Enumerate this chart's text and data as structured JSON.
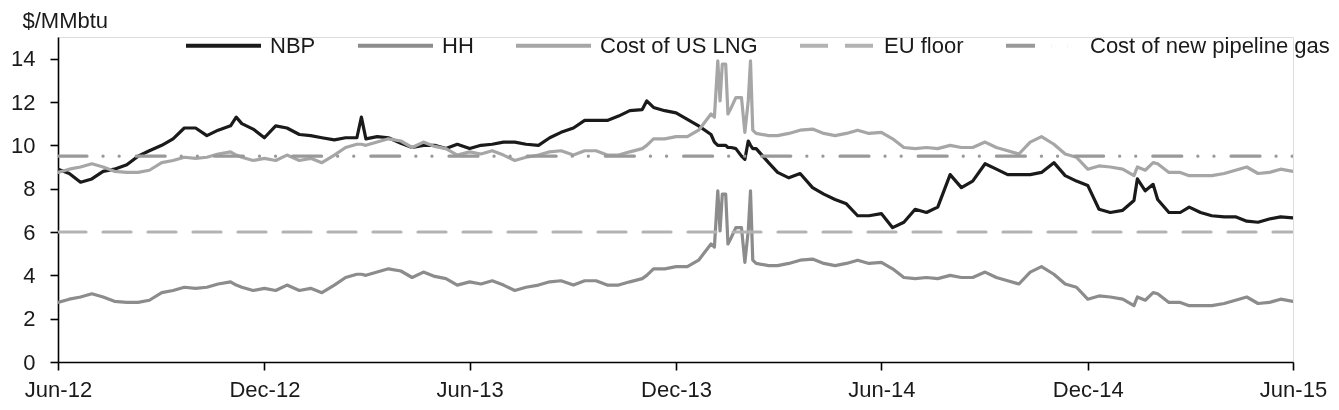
{
  "chart_data": {
    "type": "line",
    "ylabel": "$/MMbtu",
    "legend": "top",
    "line_style": "solid",
    "xlim": [
      "2012-06-01",
      "2015-06-01"
    ],
    "xticks": [
      {
        "value": "2012-06",
        "label": "Jun-12"
      },
      {
        "value": "2012-12",
        "label": "Dec-12"
      },
      {
        "value": "2013-06",
        "label": "Jun-13"
      },
      {
        "value": "2013-12",
        "label": "Dec-13"
      },
      {
        "value": "2014-06",
        "label": "Jun-14"
      },
      {
        "value": "2014-12",
        "label": "Dec-14"
      },
      {
        "value": "2015-06",
        "label": "Jun-15"
      }
    ],
    "ylim": [
      0,
      15
    ],
    "yticks": [
      0,
      2,
      4,
      6,
      8,
      10,
      12,
      14
    ],
    "x": [
      "2012-06-01",
      "2012-06-11",
      "2012-06-21",
      "2012-07-01",
      "2012-07-11",
      "2012-07-21",
      "2012-08-01",
      "2012-08-11",
      "2012-08-21",
      "2012-09-01",
      "2012-09-11",
      "2012-09-21",
      "2012-10-01",
      "2012-10-11",
      "2012-10-21",
      "2012-11-01",
      "2012-11-06",
      "2012-11-11",
      "2012-11-21",
      "2012-12-01",
      "2012-12-11",
      "2012-12-21",
      "2013-01-01",
      "2013-01-11",
      "2013-01-21",
      "2013-02-01",
      "2013-02-11",
      "2013-02-21",
      "2013-02-25",
      "2013-03-01",
      "2013-03-11",
      "2013-03-21",
      "2013-04-01",
      "2013-04-11",
      "2013-04-21",
      "2013-05-01",
      "2013-05-11",
      "2013-05-21",
      "2013-06-01",
      "2013-06-11",
      "2013-06-21",
      "2013-07-01",
      "2013-07-11",
      "2013-07-21",
      "2013-08-01",
      "2013-08-11",
      "2013-08-21",
      "2013-09-01",
      "2013-09-11",
      "2013-09-21",
      "2013-10-01",
      "2013-10-11",
      "2013-10-21",
      "2013-11-01",
      "2013-11-05",
      "2013-11-11",
      "2013-11-21",
      "2013-12-01",
      "2013-12-11",
      "2013-12-21",
      "2014-01-01",
      "2014-01-04",
      "2014-01-07",
      "2014-01-09",
      "2014-01-11",
      "2014-01-14",
      "2014-01-16",
      "2014-01-19",
      "2014-01-23",
      "2014-01-28",
      "2014-01-31",
      "2014-02-03",
      "2014-02-05",
      "2014-02-07",
      "2014-02-10",
      "2014-02-21",
      "2014-03-01",
      "2014-03-11",
      "2014-03-21",
      "2014-04-01",
      "2014-04-11",
      "2014-04-21",
      "2014-05-01",
      "2014-05-11",
      "2014-05-21",
      "2014-06-01",
      "2014-06-11",
      "2014-06-21",
      "2014-07-01",
      "2014-07-11",
      "2014-07-21",
      "2014-08-01",
      "2014-08-11",
      "2014-08-21",
      "2014-09-01",
      "2014-09-11",
      "2014-09-21",
      "2014-10-01",
      "2014-10-11",
      "2014-10-21",
      "2014-11-01",
      "2014-11-11",
      "2014-11-21",
      "2014-12-01",
      "2014-12-11",
      "2014-12-21",
      "2015-01-01",
      "2015-01-11",
      "2015-01-14",
      "2015-01-21",
      "2015-01-28",
      "2015-02-01",
      "2015-02-11",
      "2015-02-21",
      "2015-03-01",
      "2015-03-11",
      "2015-03-21",
      "2015-04-01",
      "2015-04-11",
      "2015-04-21",
      "2015-05-01",
      "2015-05-11",
      "2015-05-21",
      "2015-06-01"
    ],
    "series": [
      {
        "name": "NBP",
        "color": "#1a1a1a",
        "values": [
          8.9,
          8.7,
          8.3,
          8.45,
          8.8,
          8.9,
          9.1,
          9.5,
          9.75,
          10.0,
          10.3,
          10.8,
          10.8,
          10.45,
          10.7,
          10.9,
          11.3,
          11.0,
          10.75,
          10.35,
          10.9,
          10.8,
          10.5,
          10.45,
          10.35,
          10.25,
          10.35,
          10.35,
          11.3,
          10.3,
          10.4,
          10.35,
          10.1,
          9.9,
          10.0,
          10.0,
          9.85,
          10.05,
          9.85,
          10.0,
          10.05,
          10.15,
          10.15,
          10.05,
          10.0,
          10.35,
          10.6,
          10.8,
          11.15,
          11.15,
          11.15,
          11.35,
          11.6,
          11.65,
          12.05,
          11.75,
          11.6,
          11.5,
          11.2,
          10.9,
          10.5,
          10.15,
          10.0,
          10.0,
          10.0,
          10.0,
          9.9,
          9.9,
          9.85,
          9.5,
          9.35,
          10.2,
          10.0,
          9.85,
          9.85,
          9.2,
          8.75,
          8.5,
          8.7,
          8.05,
          7.75,
          7.5,
          7.3,
          6.75,
          6.75,
          6.85,
          6.2,
          6.45,
          7.05,
          6.9,
          7.15,
          8.65,
          8.05,
          8.35,
          9.15,
          8.9,
          8.65,
          8.65,
          8.65,
          8.75,
          9.2,
          8.6,
          8.35,
          8.15,
          7.05,
          6.9,
          7.0,
          7.45,
          8.45,
          7.9,
          8.2,
          7.5,
          6.9,
          6.9,
          7.15,
          6.9,
          6.75,
          6.7,
          6.7,
          6.5,
          6.45,
          6.6,
          6.7,
          6.65
        ]
      },
      {
        "name": "HH",
        "color": "#8c8c8c",
        "values": [
          2.75,
          2.9,
          3.0,
          3.15,
          3.0,
          2.8,
          2.75,
          2.75,
          2.85,
          3.2,
          3.3,
          3.45,
          3.4,
          3.45,
          3.6,
          3.7,
          3.55,
          3.45,
          3.3,
          3.4,
          3.3,
          3.55,
          3.3,
          3.4,
          3.2,
          3.55,
          3.9,
          4.05,
          4.05,
          4.0,
          4.15,
          4.3,
          4.2,
          3.9,
          4.15,
          3.95,
          3.85,
          3.55,
          3.7,
          3.6,
          3.75,
          3.55,
          3.3,
          3.45,
          3.55,
          3.7,
          3.75,
          3.55,
          3.75,
          3.75,
          3.55,
          3.55,
          3.7,
          3.85,
          4.0,
          4.3,
          4.3,
          4.4,
          4.4,
          4.7,
          5.45,
          5.3,
          7.9,
          6.05,
          7.75,
          7.75,
          5.45,
          5.75,
          6.2,
          6.2,
          4.6,
          6.05,
          7.9,
          4.7,
          4.55,
          4.45,
          4.45,
          4.55,
          4.7,
          4.75,
          4.55,
          4.45,
          4.55,
          4.7,
          4.55,
          4.6,
          4.3,
          3.9,
          3.85,
          3.9,
          3.85,
          4.0,
          3.9,
          3.9,
          4.15,
          3.9,
          3.75,
          3.6,
          4.15,
          4.4,
          4.05,
          3.6,
          3.45,
          2.9,
          3.05,
          3.0,
          2.9,
          2.6,
          3.0,
          2.85,
          3.2,
          3.15,
          2.75,
          2.75,
          2.6,
          2.6,
          2.6,
          2.7,
          2.85,
          3.0,
          2.7,
          2.75,
          2.9,
          2.8
        ]
      },
      {
        "name": "Cost of US LNG",
        "color": "#a6a6a6",
        "values": [
          8.75,
          8.9,
          9.0,
          9.15,
          9.0,
          8.8,
          8.75,
          8.75,
          8.85,
          9.2,
          9.3,
          9.45,
          9.4,
          9.45,
          9.6,
          9.7,
          9.55,
          9.45,
          9.3,
          9.4,
          9.3,
          9.55,
          9.3,
          9.4,
          9.2,
          9.55,
          9.9,
          10.05,
          10.05,
          10.0,
          10.15,
          10.3,
          10.2,
          9.9,
          10.15,
          9.95,
          9.85,
          9.55,
          9.7,
          9.6,
          9.75,
          9.55,
          9.3,
          9.45,
          9.55,
          9.7,
          9.75,
          9.55,
          9.75,
          9.75,
          9.55,
          9.55,
          9.7,
          9.85,
          10.0,
          10.3,
          10.3,
          10.4,
          10.4,
          10.7,
          11.45,
          11.3,
          13.9,
          12.05,
          13.75,
          13.75,
          11.45,
          11.75,
          12.2,
          12.2,
          10.6,
          12.05,
          13.9,
          10.7,
          10.55,
          10.45,
          10.45,
          10.55,
          10.7,
          10.75,
          10.55,
          10.45,
          10.55,
          10.7,
          10.55,
          10.6,
          10.3,
          9.9,
          9.85,
          9.9,
          9.85,
          10.0,
          9.9,
          9.9,
          10.15,
          9.9,
          9.75,
          9.6,
          10.15,
          10.4,
          10.05,
          9.6,
          9.45,
          8.9,
          9.05,
          9.0,
          8.9,
          8.6,
          9.0,
          8.85,
          9.2,
          9.15,
          8.75,
          8.75,
          8.6,
          8.6,
          8.6,
          8.7,
          8.85,
          9.0,
          8.7,
          8.75,
          8.9,
          8.8
        ]
      },
      {
        "name": "EU floor",
        "color": "#b3b3b3",
        "line_style": "dashed",
        "x": [
          "2012-06-01",
          "2015-06-01"
        ],
        "values": [
          6,
          6
        ]
      },
      {
        "name": "Cost of new pipeline gas",
        "color": "#999999",
        "line_style": "dashdotdot",
        "x": [
          "2012-06-01",
          "2015-06-01"
        ],
        "values": [
          9.5,
          9.5
        ]
      }
    ]
  }
}
